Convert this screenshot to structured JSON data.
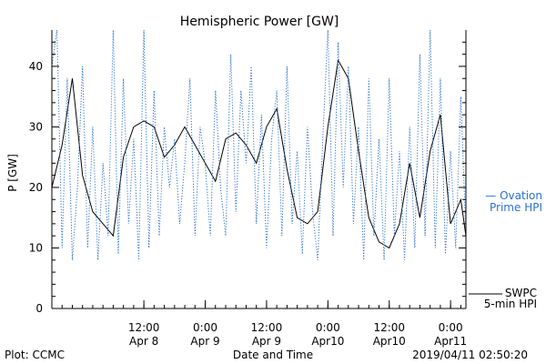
{
  "chart_data": {
    "type": "line",
    "title": "Hemispheric Power [GW]",
    "xlabel": "Date and Time",
    "ylabel": "P [GW]",
    "ylim": [
      0,
      46
    ],
    "yticks": [
      0,
      10,
      20,
      30,
      40
    ],
    "xlim": [
      "2019-04-07T18:00",
      "2019-04-11T03:00"
    ],
    "xticks": [
      {
        "t": "2019-04-08T12:00",
        "time": "12:00",
        "date": "Apr 8"
      },
      {
        "t": "2019-04-09T00:00",
        "time": "0:00",
        "date": "Apr 9"
      },
      {
        "t": "2019-04-09T12:00",
        "time": "12:00",
        "date": "Apr 9"
      },
      {
        "t": "2019-04-10T00:00",
        "time": "0:00",
        "date": "Apr10"
      },
      {
        "t": "2019-04-10T12:00",
        "time": "12:00",
        "date": "Apr10"
      },
      {
        "t": "2019-04-11T00:00",
        "time": "0:00",
        "date": "Apr11"
      }
    ],
    "series": [
      {
        "name": "SWPC 5-min HPI",
        "color": "#000000",
        "style": "solid",
        "x": [
          "2019-04-07T18:00",
          "2019-04-07T20:00",
          "2019-04-07T22:00",
          "2019-04-08T00:00",
          "2019-04-08T02:00",
          "2019-04-08T04:00",
          "2019-04-08T06:00",
          "2019-04-08T08:00",
          "2019-04-08T10:00",
          "2019-04-08T12:00",
          "2019-04-08T14:00",
          "2019-04-08T16:00",
          "2019-04-08T18:00",
          "2019-04-08T20:00",
          "2019-04-08T22:00",
          "2019-04-09T00:00",
          "2019-04-09T02:00",
          "2019-04-09T04:00",
          "2019-04-09T06:00",
          "2019-04-09T08:00",
          "2019-04-09T10:00",
          "2019-04-09T12:00",
          "2019-04-09T14:00",
          "2019-04-09T16:00",
          "2019-04-09T18:00",
          "2019-04-09T20:00",
          "2019-04-09T22:00",
          "2019-04-10T00:00",
          "2019-04-10T02:00",
          "2019-04-10T04:00",
          "2019-04-10T06:00",
          "2019-04-10T08:00",
          "2019-04-10T10:00",
          "2019-04-10T12:00",
          "2019-04-10T14:00",
          "2019-04-10T16:00",
          "2019-04-10T18:00",
          "2019-04-10T20:00",
          "2019-04-10T22:00",
          "2019-04-11T00:00",
          "2019-04-11T02:00",
          "2019-04-11T03:00"
        ],
        "y": [
          20,
          27,
          38,
          22,
          16,
          14,
          12,
          25,
          30,
          31,
          30,
          25,
          27,
          30,
          27,
          24,
          21,
          28,
          29,
          27,
          24,
          30,
          33,
          23,
          15,
          14,
          16,
          30,
          41,
          38,
          26,
          15,
          11,
          10,
          14,
          24,
          15,
          26,
          32,
          14,
          18,
          12
        ]
      },
      {
        "name": "Ovation Prime HPI",
        "color": "#2a6fd0",
        "style": "dotted",
        "x": [
          "2019-04-07T18:00",
          "2019-04-07T19:00",
          "2019-04-07T20:00",
          "2019-04-07T21:00",
          "2019-04-07T22:00",
          "2019-04-07T23:00",
          "2019-04-08T00:00",
          "2019-04-08T01:00",
          "2019-04-08T02:00",
          "2019-04-08T03:00",
          "2019-04-08T04:00",
          "2019-04-08T05:00",
          "2019-04-08T06:00",
          "2019-04-08T07:00",
          "2019-04-08T08:00",
          "2019-04-08T09:00",
          "2019-04-08T10:00",
          "2019-04-08T11:00",
          "2019-04-08T12:00",
          "2019-04-08T13:00",
          "2019-04-08T14:00",
          "2019-04-08T15:00",
          "2019-04-08T16:00",
          "2019-04-08T17:00",
          "2019-04-08T18:00",
          "2019-04-08T19:00",
          "2019-04-08T20:00",
          "2019-04-08T21:00",
          "2019-04-08T22:00",
          "2019-04-08T23:00",
          "2019-04-09T00:00",
          "2019-04-09T01:00",
          "2019-04-09T02:00",
          "2019-04-09T03:00",
          "2019-04-09T04:00",
          "2019-04-09T05:00",
          "2019-04-09T06:00",
          "2019-04-09T07:00",
          "2019-04-09T08:00",
          "2019-04-09T09:00",
          "2019-04-09T10:00",
          "2019-04-09T11:00",
          "2019-04-09T12:00",
          "2019-04-09T13:00",
          "2019-04-09T14:00",
          "2019-04-09T15:00",
          "2019-04-09T16:00",
          "2019-04-09T17:00",
          "2019-04-09T18:00",
          "2019-04-09T19:00",
          "2019-04-09T20:00",
          "2019-04-09T21:00",
          "2019-04-09T22:00",
          "2019-04-09T23:00",
          "2019-04-10T00:00",
          "2019-04-10T01:00",
          "2019-04-10T02:00",
          "2019-04-10T03:00",
          "2019-04-10T04:00",
          "2019-04-10T05:00",
          "2019-04-10T06:00",
          "2019-04-10T07:00",
          "2019-04-10T08:00",
          "2019-04-10T09:00",
          "2019-04-10T10:00",
          "2019-04-10T11:00",
          "2019-04-10T12:00",
          "2019-04-10T13:00",
          "2019-04-10T14:00",
          "2019-04-10T15:00",
          "2019-04-10T16:00",
          "2019-04-10T17:00",
          "2019-04-10T18:00",
          "2019-04-10T19:00",
          "2019-04-10T20:00",
          "2019-04-10T21:00",
          "2019-04-10T22:00",
          "2019-04-10T23:00",
          "2019-04-11T00:00",
          "2019-04-11T01:00",
          "2019-04-11T02:00",
          "2019-04-11T03:00"
        ],
        "y": [
          40,
          46,
          10,
          38,
          8,
          20,
          40,
          10,
          30,
          8,
          24,
          12,
          46,
          9,
          38,
          14,
          28,
          8,
          46,
          10,
          36,
          12,
          30,
          20,
          28,
          14,
          24,
          38,
          12,
          30,
          24,
          12,
          36,
          20,
          12,
          42,
          16,
          36,
          24,
          40,
          14,
          32,
          10,
          28,
          36,
          12,
          40,
          14,
          26,
          9,
          30,
          16,
          8,
          28,
          46,
          12,
          44,
          20,
          40,
          14,
          30,
          8,
          38,
          12,
          28,
          8,
          38,
          12,
          26,
          8,
          30,
          10,
          42,
          12,
          46,
          10,
          38,
          9,
          26,
          10,
          35,
          12
        ]
      }
    ],
    "legend": [
      {
        "lines": [
          "SWPC",
          "5-min HPI"
        ],
        "color": "#000000",
        "style": "solid"
      },
      {
        "lines": [
          "— Ovation",
          "Prime HPI"
        ],
        "color": "#2a6fd0",
        "style": "dotted"
      }
    ],
    "legend_placement": "right-of-plot"
  },
  "footer": {
    "left": "Plot: CCMC",
    "right": "2019/04/11 02:50:20"
  }
}
